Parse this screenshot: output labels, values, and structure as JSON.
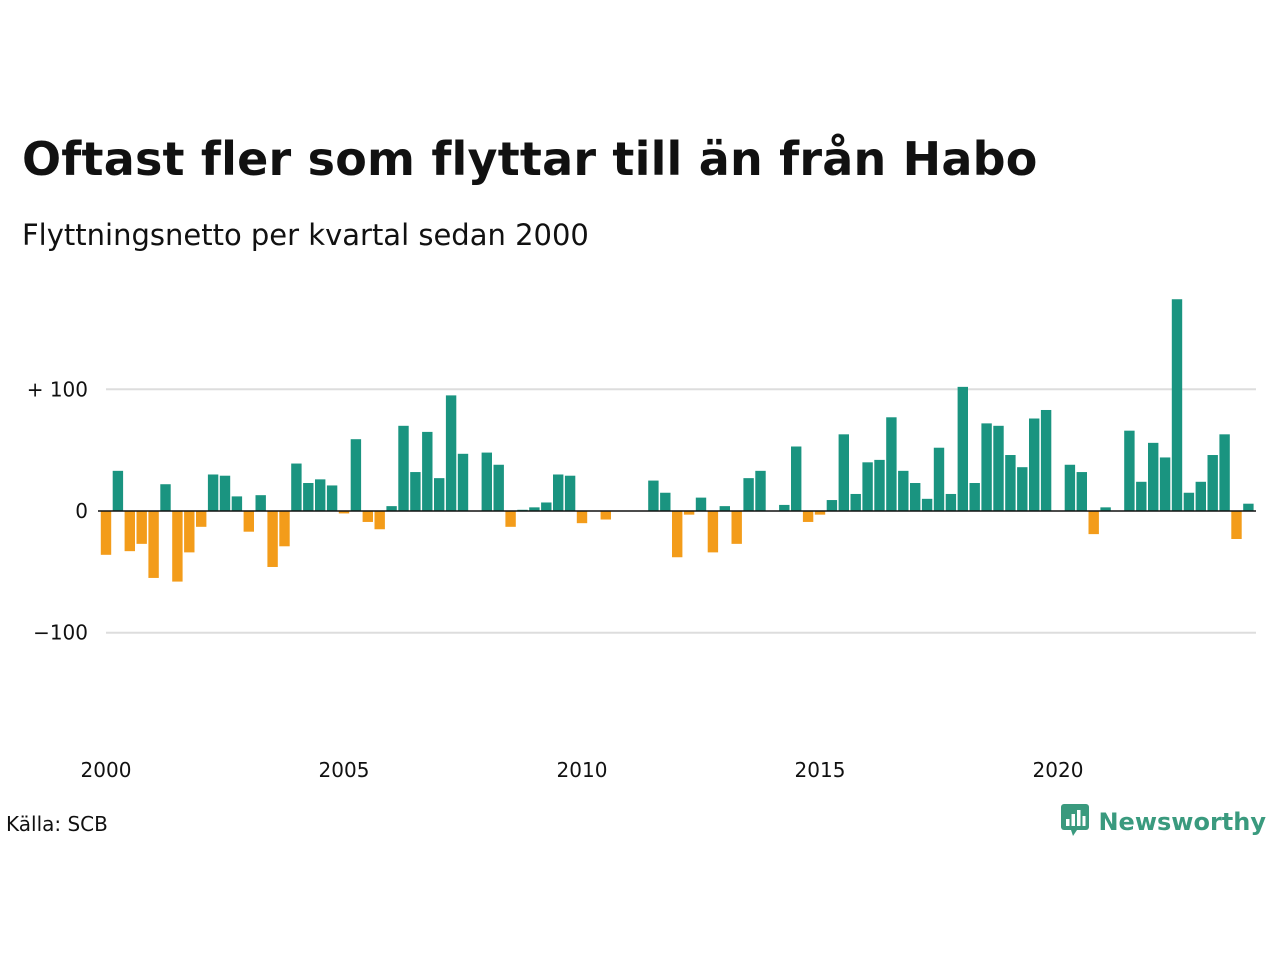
{
  "header": {
    "title": "Oftast fler som flyttar till än från Habo",
    "subtitle": "Flyttningsnetto per kvartal sedan 2000"
  },
  "footer": {
    "source": "Källa: SCB",
    "brand": "Newsworthy",
    "brand_icon": "newsworthy-logo-icon"
  },
  "colors": {
    "positive": "#1a9480",
    "negative": "#f39c1a",
    "grid": "#dddddd",
    "zero": "#111111",
    "brand": "#3a9a7e"
  },
  "chart_data": {
    "type": "bar",
    "title": "Oftast fler som flyttar till än från Habo",
    "subtitle": "Flyttningsnetto per kvartal sedan 2000",
    "xlabel": "",
    "ylabel": "",
    "x_start": 2000.0,
    "x_step": 0.25,
    "xlim": [
      2000,
      2024.25
    ],
    "ylim": [
      -190,
      180
    ],
    "y_ticks": [
      {
        "value": 100,
        "label": "+ 100"
      },
      {
        "value": 0,
        "label": "0"
      },
      {
        "value": -100,
        "label": "−100"
      }
    ],
    "x_ticks": [
      {
        "value": 2000,
        "label": "2000"
      },
      {
        "value": 2005,
        "label": "2005"
      },
      {
        "value": 2010,
        "label": "2010"
      },
      {
        "value": 2015,
        "label": "2015"
      },
      {
        "value": 2020,
        "label": "2020"
      }
    ],
    "grid": true,
    "legend": "none",
    "values": [
      -36,
      33,
      -33,
      -27,
      -55,
      22,
      -58,
      -34,
      -13,
      30,
      29,
      12,
      -17,
      13,
      -46,
      -29,
      39,
      23,
      26,
      21,
      -2,
      59,
      -9,
      -15,
      4,
      70,
      32,
      65,
      27,
      95,
      47,
      0,
      48,
      38,
      -13,
      1,
      3,
      7,
      30,
      29,
      -10,
      0,
      -7,
      0,
      0,
      0,
      25,
      15,
      -38,
      -3,
      11,
      -34,
      4,
      -27,
      27,
      33,
      0,
      5,
      53,
      -9,
      -3,
      9,
      63,
      14,
      40,
      42,
      77,
      33,
      23,
      10,
      52,
      14,
      102,
      23,
      72,
      70,
      46,
      36,
      76,
      83,
      0,
      38,
      32,
      -19,
      3,
      0,
      66,
      24,
      56,
      44,
      174,
      15,
      24,
      46,
      63,
      -23,
      6
    ]
  }
}
